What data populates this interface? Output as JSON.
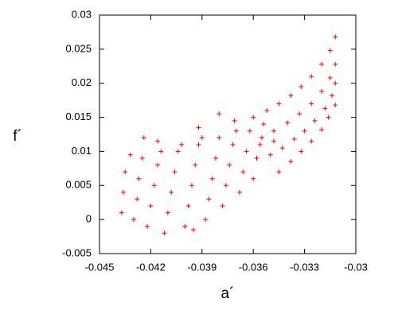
{
  "chart_data": {
    "type": "scatter",
    "xlabel": "a´",
    "ylabel": "f´",
    "color": "#ff0000",
    "xlim": [
      -0.045,
      -0.03
    ],
    "xticks": [
      -0.045,
      -0.042,
      -0.039,
      -0.036,
      -0.033,
      -0.03
    ],
    "ylim": [
      -0.005,
      0.03
    ],
    "yticks": [
      -0.005,
      0,
      0.005,
      0.01,
      0.015,
      0.02,
      0.025,
      0.03
    ],
    "x": [
      -0.036,
      -0.0352,
      -0.0345,
      -0.0338,
      -0.0332,
      -0.0326,
      -0.032,
      -0.0315,
      -0.0312,
      -0.0355,
      -0.0348,
      -0.034,
      -0.0333,
      -0.0326,
      -0.032,
      -0.0315,
      -0.0312,
      -0.035,
      -0.0343,
      -0.0336,
      -0.033,
      -0.0324,
      -0.0318,
      -0.0314,
      -0.0312,
      -0.0345,
      -0.0338,
      -0.0332,
      -0.0326,
      -0.032,
      -0.0316,
      -0.0312,
      -0.0437,
      -0.0436,
      -0.0435,
      -0.043,
      -0.0428,
      -0.0427,
      -0.0425,
      -0.0422,
      -0.042,
      -0.0418,
      -0.0416,
      -0.0414,
      -0.0412,
      -0.041,
      -0.0408,
      -0.0406,
      -0.0404,
      -0.0402,
      -0.04,
      -0.0398,
      -0.0396,
      -0.0394,
      -0.0392,
      -0.039,
      -0.0388,
      -0.0386,
      -0.0384,
      -0.0382,
      -0.038,
      -0.0378,
      -0.0376,
      -0.0374,
      -0.0372,
      -0.037,
      -0.0368,
      -0.0366,
      -0.0364,
      -0.0362,
      -0.036,
      -0.0358,
      -0.0356,
      -0.0354,
      -0.0371,
      -0.038,
      -0.0392,
      -0.0416,
      -0.0432,
      -0.0395,
      -0.0424,
      -0.0348
    ],
    "values": [
      0.015,
      0.016,
      0.017,
      0.0182,
      0.0195,
      0.021,
      0.0228,
      0.0248,
      0.0268,
      0.012,
      0.013,
      0.0142,
      0.0155,
      0.017,
      0.0188,
      0.0208,
      0.0228,
      0.0095,
      0.0105,
      0.0118,
      0.013,
      0.0145,
      0.0163,
      0.0182,
      0.02,
      0.007,
      0.0085,
      0.01,
      0.0115,
      0.0132,
      0.015,
      0.0168,
      0.001,
      0.004,
      0.007,
      0.0,
      0.003,
      0.006,
      0.009,
      -0.001,
      0.002,
      0.005,
      0.008,
      0.01,
      -0.002,
      0.001,
      0.004,
      0.007,
      0.01,
      0.011,
      -0.001,
      0.002,
      0.005,
      0.008,
      0.011,
      0.012,
      0.0,
      0.003,
      0.006,
      0.009,
      0.012,
      0.002,
      0.005,
      0.008,
      0.011,
      0.013,
      0.004,
      0.007,
      0.01,
      0.013,
      0.006,
      0.009,
      0.011,
      0.014,
      0.0145,
      0.0155,
      0.0135,
      0.0115,
      0.0095,
      -0.0015,
      0.012,
      0.0115
    ]
  }
}
